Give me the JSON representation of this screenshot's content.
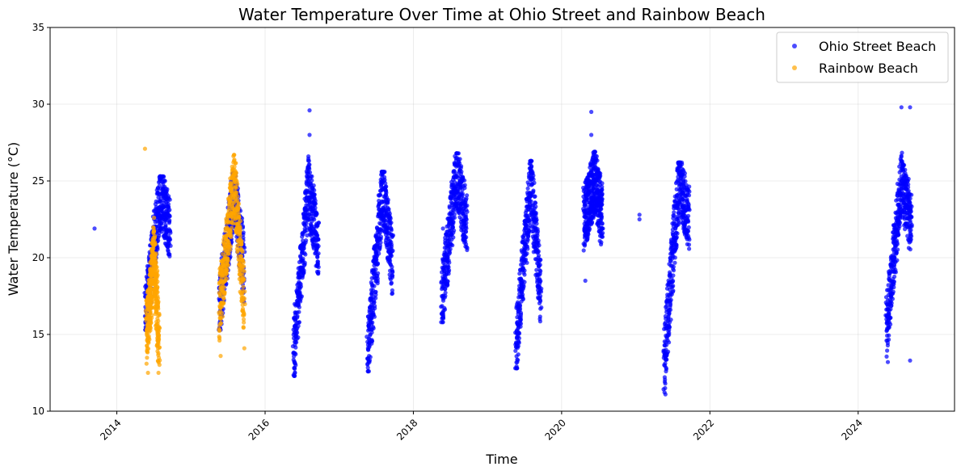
{
  "chart_data": {
    "type": "scatter",
    "title": "Water Temperature Over Time at Ohio Street and Rainbow Beach",
    "xlabel": "Time",
    "ylabel": "Water Temperature (°C)",
    "x_axis": "date (decimal year)",
    "xlim": [
      2013.1,
      2025.3
    ],
    "ylim": [
      10,
      35
    ],
    "xticks": [
      2014,
      2016,
      2018,
      2020,
      2022,
      2024
    ],
    "xtick_labels": [
      "2014",
      "2016",
      "2018",
      "2020",
      "2022",
      "2024"
    ],
    "yticks": [
      10,
      15,
      20,
      25,
      30,
      35
    ],
    "ytick_labels": [
      "10",
      "15",
      "20",
      "25",
      "30",
      "35"
    ],
    "grid": true,
    "legend_position": "top-right",
    "series": [
      {
        "name": "Ohio Street Beach",
        "color": "#0000ff",
        "seasons": [
          {
            "x_start": 2014.38,
            "x_end": 2014.72,
            "y_min": 15.3,
            "y_max": 25.3,
            "start_level": 16.0,
            "peak_level": 24.0,
            "end_level": 22.0
          },
          {
            "x_start": 2015.38,
            "x_end": 2015.72,
            "y_min": 15.3,
            "y_max": 25.5,
            "start_level": 16.5,
            "peak_level": 24.5,
            "end_level": 19.0
          },
          {
            "x_start": 2016.38,
            "x_end": 2016.72,
            "y_min": 12.3,
            "y_max": 26.6,
            "start_level": 13.5,
            "peak_level": 24.5,
            "end_level": 20.5
          },
          {
            "x_start": 2017.38,
            "x_end": 2017.72,
            "y_min": 12.6,
            "y_max": 25.6,
            "start_level": 13.5,
            "peak_level": 24.5,
            "end_level": 19.5
          },
          {
            "x_start": 2018.38,
            "x_end": 2018.72,
            "y_min": 15.8,
            "y_max": 26.8,
            "start_level": 17.0,
            "peak_level": 25.5,
            "end_level": 22.0
          },
          {
            "x_start": 2019.38,
            "x_end": 2019.72,
            "y_min": 12.8,
            "y_max": 26.3,
            "start_level": 14.0,
            "peak_level": 25.0,
            "end_level": 17.5
          },
          {
            "x_start": 2020.3,
            "x_end": 2020.55,
            "y_min": 18.5,
            "y_max": 26.9,
            "start_level": 22.5,
            "peak_level": 25.0,
            "end_level": 22.5
          },
          {
            "x_start": 2021.38,
            "x_end": 2021.72,
            "y_min": 11.1,
            "y_max": 26.2,
            "start_level": 13.0,
            "peak_level": 25.0,
            "end_level": 22.5
          },
          {
            "x_start": 2024.38,
            "x_end": 2024.72,
            "y_min": 13.2,
            "y_max": 29.8,
            "start_level": 15.5,
            "peak_level": 25.0,
            "end_level": 22.0
          }
        ],
        "points": [
          [
            2013.7,
            21.9
          ],
          [
            2016.6,
            29.6
          ],
          [
            2016.6,
            28.0
          ],
          [
            2020.4,
            29.5
          ],
          [
            2020.4,
            28.0
          ],
          [
            2024.7,
            29.8
          ],
          [
            2024.7,
            13.3
          ],
          [
            2021.05,
            22.8
          ],
          [
            2021.05,
            22.5
          ],
          [
            2019.5,
            22.2
          ],
          [
            2018.4,
            21.9
          ]
        ]
      },
      {
        "name": "Rainbow Beach",
        "color": "#ffa500",
        "seasons": [
          {
            "x_start": 2014.4,
            "x_end": 2014.57,
            "y_min": 12.5,
            "y_max": 22.6,
            "start_level": 15.0,
            "peak_level": 20.0,
            "end_level": 14.5
          },
          {
            "x_start": 2015.38,
            "x_end": 2015.72,
            "y_min": 13.6,
            "y_max": 26.7,
            "start_level": 16.5,
            "peak_level": 25.0,
            "end_level": 17.0
          }
        ],
        "points": [
          [
            2014.38,
            27.1
          ],
          [
            2015.58,
            26.7
          ],
          [
            2015.4,
            16.0
          ],
          [
            2015.72,
            14.1
          ]
        ]
      }
    ]
  }
}
